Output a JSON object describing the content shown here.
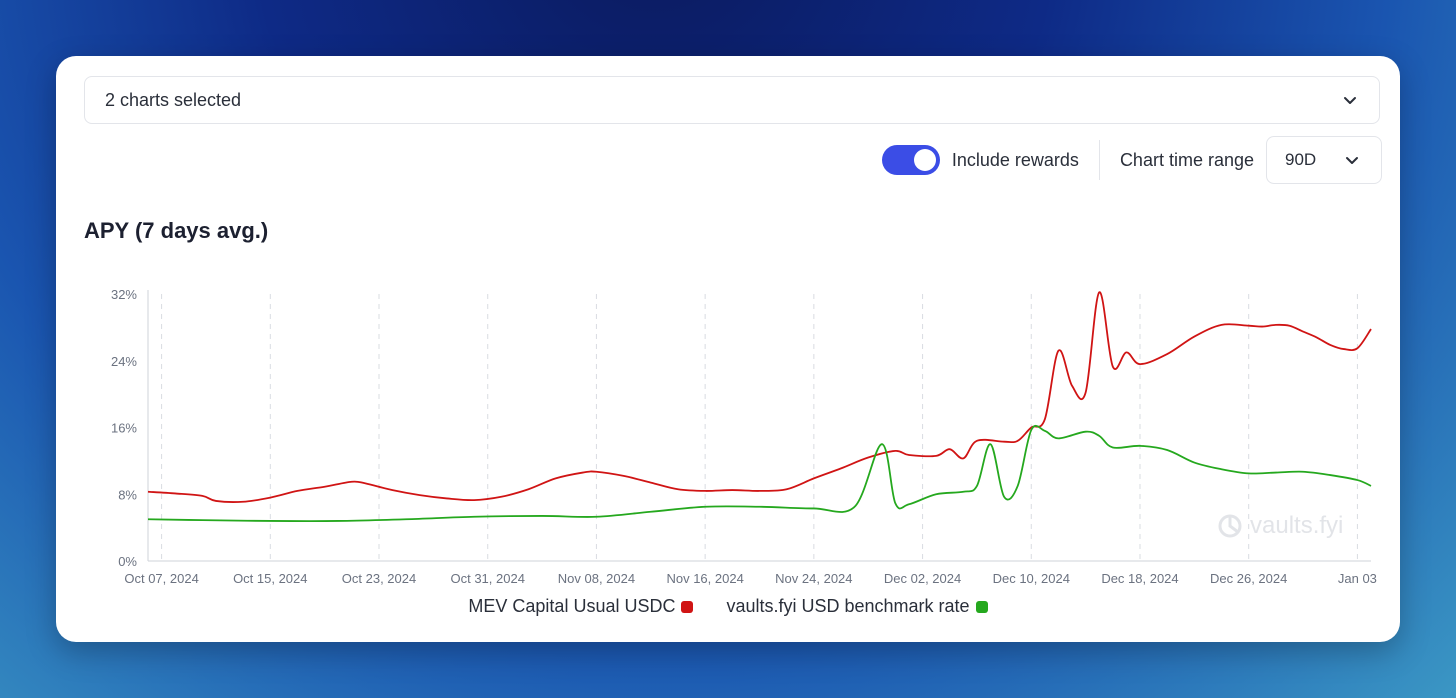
{
  "selector": {
    "label": "2 charts selected",
    "chevron_icon": "chevron-down-icon"
  },
  "controls": {
    "rewards_toggle_on": true,
    "rewards_label": "Include rewards",
    "range_label": "Chart time range",
    "range_value": "90D"
  },
  "colors": {
    "accent": "#3b4de6",
    "series1": "#d01414",
    "series2": "#25a81e"
  },
  "watermark": "vaults.fyi",
  "chart_data": {
    "type": "line",
    "title": "APY (7 days avg.)",
    "xlabel": "",
    "ylabel": "",
    "ylim": [
      0,
      32
    ],
    "yticks": [
      0,
      8,
      16,
      24,
      32
    ],
    "ytick_labels": [
      "0%",
      "8%",
      "16%",
      "24%",
      "32%"
    ],
    "xlim": [
      "2024-10-06",
      "2025-01-04"
    ],
    "xticks": [
      "2024-10-07",
      "2024-10-15",
      "2024-10-23",
      "2024-10-31",
      "2024-11-08",
      "2024-11-16",
      "2024-11-24",
      "2024-12-02",
      "2024-12-10",
      "2024-12-18",
      "2024-12-26",
      "2025-01-03"
    ],
    "xtick_labels": [
      "Oct 07, 2024",
      "Oct 15, 2024",
      "Oct 23, 2024",
      "Oct 31, 2024",
      "Nov 08, 2024",
      "Nov 16, 2024",
      "Nov 24, 2024",
      "Dec 02, 2024",
      "Dec 10, 2024",
      "Dec 18, 2024",
      "Dec 26, 2024",
      "Jan 03"
    ],
    "grid": "vertical-dashed",
    "legend_position": "bottom",
    "series": [
      {
        "name": "MEV Capital Usual USDC",
        "color": "#d01414",
        "points": [
          [
            "2024-10-06",
            8.3
          ],
          [
            "2024-10-08",
            8.1
          ],
          [
            "2024-10-10",
            7.8
          ],
          [
            "2024-10-11",
            7.2
          ],
          [
            "2024-10-13",
            7.1
          ],
          [
            "2024-10-15",
            7.6
          ],
          [
            "2024-10-17",
            8.4
          ],
          [
            "2024-10-19",
            8.9
          ],
          [
            "2024-10-21",
            9.5
          ],
          [
            "2024-10-22",
            9.3
          ],
          [
            "2024-10-24",
            8.5
          ],
          [
            "2024-10-26",
            7.9
          ],
          [
            "2024-10-28",
            7.5
          ],
          [
            "2024-10-30",
            7.3
          ],
          [
            "2024-11-01",
            7.7
          ],
          [
            "2024-11-03",
            8.6
          ],
          [
            "2024-11-05",
            9.9
          ],
          [
            "2024-11-07",
            10.6
          ],
          [
            "2024-11-08",
            10.7
          ],
          [
            "2024-11-10",
            10.2
          ],
          [
            "2024-11-12",
            9.4
          ],
          [
            "2024-11-14",
            8.6
          ],
          [
            "2024-11-16",
            8.4
          ],
          [
            "2024-11-18",
            8.5
          ],
          [
            "2024-11-20",
            8.4
          ],
          [
            "2024-11-22",
            8.6
          ],
          [
            "2024-11-24",
            9.9
          ],
          [
            "2024-11-26",
            11.1
          ],
          [
            "2024-11-28",
            12.4
          ],
          [
            "2024-11-30",
            13.2
          ],
          [
            "2024-12-01",
            12.7
          ],
          [
            "2024-12-03",
            12.6
          ],
          [
            "2024-12-04",
            13.4
          ],
          [
            "2024-12-05",
            12.3
          ],
          [
            "2024-12-06",
            14.4
          ],
          [
            "2024-12-08",
            14.3
          ],
          [
            "2024-12-09",
            14.4
          ],
          [
            "2024-12-10",
            16.0
          ],
          [
            "2024-12-11",
            17.0
          ],
          [
            "2024-12-12",
            25.2
          ],
          [
            "2024-12-13",
            21.0
          ],
          [
            "2024-12-14",
            20.2
          ],
          [
            "2024-12-15",
            32.2
          ],
          [
            "2024-12-16",
            23.3
          ],
          [
            "2024-12-17",
            25.0
          ],
          [
            "2024-12-18",
            23.6
          ],
          [
            "2024-12-20",
            24.8
          ],
          [
            "2024-12-22",
            26.9
          ],
          [
            "2024-12-24",
            28.3
          ],
          [
            "2024-12-26",
            28.2
          ],
          [
            "2024-12-27",
            28.1
          ],
          [
            "2024-12-28",
            28.3
          ],
          [
            "2024-12-29",
            28.2
          ],
          [
            "2024-12-30",
            27.5
          ],
          [
            "2024-12-31",
            26.8
          ],
          [
            "2025-01-01",
            25.9
          ],
          [
            "2025-01-02",
            25.4
          ],
          [
            "2025-01-03",
            25.5
          ],
          [
            "2025-01-04",
            27.8
          ]
        ]
      },
      {
        "name": "vaults.fyi USD benchmark rate",
        "color": "#25a81e",
        "points": [
          [
            "2024-10-06",
            5.0
          ],
          [
            "2024-10-10",
            4.9
          ],
          [
            "2024-10-15",
            4.8
          ],
          [
            "2024-10-20",
            4.8
          ],
          [
            "2024-10-25",
            5.0
          ],
          [
            "2024-10-30",
            5.3
          ],
          [
            "2024-11-04",
            5.4
          ],
          [
            "2024-11-08",
            5.3
          ],
          [
            "2024-11-12",
            5.9
          ],
          [
            "2024-11-16",
            6.5
          ],
          [
            "2024-11-20",
            6.5
          ],
          [
            "2024-11-24",
            6.3
          ],
          [
            "2024-11-27",
            6.5
          ],
          [
            "2024-11-29",
            14.0
          ],
          [
            "2024-11-30",
            6.9
          ],
          [
            "2024-12-01",
            6.8
          ],
          [
            "2024-12-03",
            8.0
          ],
          [
            "2024-12-05",
            8.3
          ],
          [
            "2024-12-06",
            9.0
          ],
          [
            "2024-12-07",
            14.0
          ],
          [
            "2024-12-08",
            7.7
          ],
          [
            "2024-12-09",
            9.0
          ],
          [
            "2024-12-10",
            15.7
          ],
          [
            "2024-12-11",
            15.6
          ],
          [
            "2024-12-12",
            14.7
          ],
          [
            "2024-12-14",
            15.5
          ],
          [
            "2024-12-15",
            15.0
          ],
          [
            "2024-12-16",
            13.6
          ],
          [
            "2024-12-18",
            13.8
          ],
          [
            "2024-12-20",
            13.3
          ],
          [
            "2024-12-22",
            11.8
          ],
          [
            "2024-12-24",
            11.0
          ],
          [
            "2024-12-26",
            10.5
          ],
          [
            "2024-12-28",
            10.6
          ],
          [
            "2024-12-30",
            10.7
          ],
          [
            "2025-01-01",
            10.3
          ],
          [
            "2025-01-03",
            9.7
          ],
          [
            "2025-01-04",
            9.0
          ]
        ]
      }
    ]
  }
}
